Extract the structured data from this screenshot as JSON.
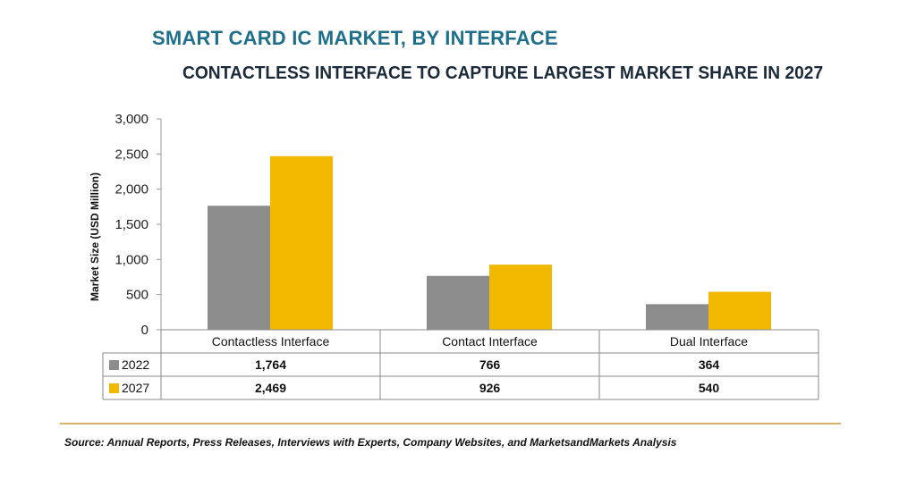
{
  "chart_data": {
    "type": "bar",
    "title": "SMART CARD IC MARKET, BY INTERFACE",
    "subtitle": "CONTACTLESS INTERFACE TO CAPTURE LARGEST MARKET SHARE IN 2027",
    "ylabel": "Market Size (USD Million)",
    "ylim": [
      0,
      3000
    ],
    "yticks": [
      0,
      500,
      1000,
      1500,
      2000,
      2500,
      3000
    ],
    "ytick_labels": [
      "0",
      "500",
      "1,000",
      "1,500",
      "2,000",
      "2,500",
      "3,000"
    ],
    "categories": [
      "Contactless Interface",
      "Contact Interface",
      "Dual Interface"
    ],
    "series": [
      {
        "name": "2022",
        "color": "#8c8c8c",
        "values": [
          1764,
          766,
          364
        ],
        "labels": [
          "1,764",
          "766",
          "364"
        ]
      },
      {
        "name": "2027",
        "color": "#f2b800",
        "values": [
          2469,
          926,
          540
        ],
        "labels": [
          "2,469",
          "926",
          "540"
        ]
      }
    ],
    "legend": "data-table-left",
    "grid": false
  },
  "source": "Source: Annual Reports, Press Releases, Interviews with Experts, Company Websites, and MarketsandMarkets Analysis"
}
